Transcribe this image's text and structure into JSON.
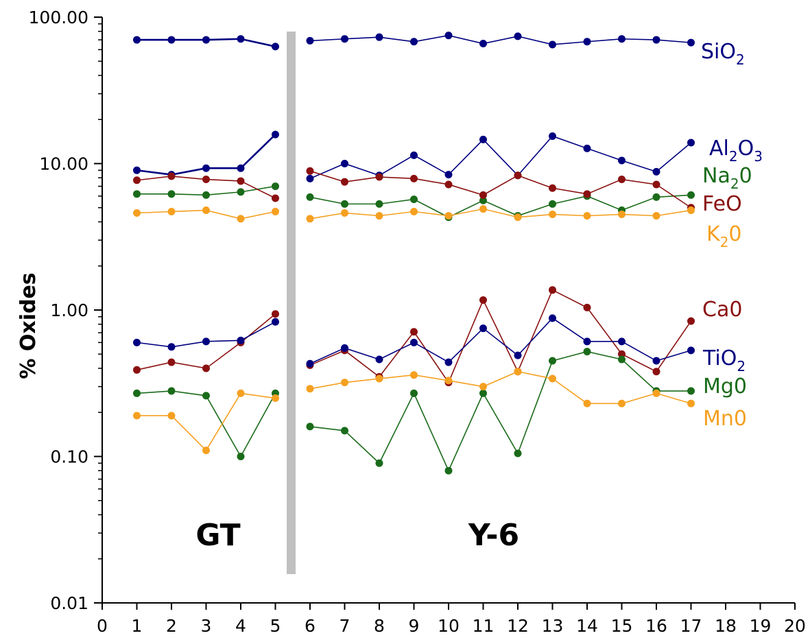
{
  "chart_data": {
    "type": "line",
    "ylabel": "% Oxides",
    "yscale": "log",
    "ylim": [
      0.01,
      100
    ],
    "xlim": [
      0,
      20
    ],
    "x_ticks": [
      "0",
      "1",
      "2",
      "3",
      "4",
      "5",
      "6",
      "7",
      "8",
      "9",
      "10",
      "11",
      "12",
      "13",
      "14",
      "15",
      "16",
      "17",
      "18",
      "19",
      "20"
    ],
    "y_ticks": [
      "0.01",
      "0.10",
      "1.00",
      "10.00",
      "100.00"
    ],
    "grid": false,
    "groups": [
      {
        "label": "GT",
        "x_range": [
          1,
          5
        ]
      },
      {
        "label": "Y-6",
        "x_range": [
          6,
          17
        ]
      }
    ],
    "series": [
      {
        "name": "SiO2",
        "label_main": "SiO",
        "label_sub": "2",
        "label_tail": "",
        "color": "#000080",
        "x": [
          1,
          2,
          3,
          4,
          5,
          6,
          7,
          8,
          9,
          10,
          11,
          12,
          13,
          14,
          15,
          16,
          17
        ],
        "values": [
          70.0,
          70.0,
          70.0,
          71.0,
          63.0,
          69.0,
          71.0,
          73.0,
          68.0,
          75.0,
          66.0,
          74.0,
          65.0,
          68.0,
          71.0,
          70.0,
          67.0
        ]
      },
      {
        "name": "Al2O3",
        "label_main": "Al",
        "label_sub": "2",
        "label_tail": "O3",
        "color": "#000080",
        "x": [
          1,
          2,
          3,
          4,
          5,
          6,
          7,
          8,
          9,
          10,
          11,
          12,
          13,
          14,
          15,
          16,
          17
        ],
        "values": [
          9.0,
          8.4,
          9.3,
          9.3,
          15.8,
          7.9,
          10.0,
          8.3,
          11.4,
          8.4,
          14.6,
          8.3,
          15.4,
          12.7,
          10.5,
          8.8,
          13.9
        ]
      },
      {
        "name": "Na20",
        "label_main": "Na",
        "label_sub": "2",
        "label_tail": "0",
        "color": "#1a6b1a",
        "x": [
          1,
          2,
          3,
          4,
          5,
          6,
          7,
          8,
          9,
          10,
          11,
          12,
          13,
          14,
          15,
          16,
          17
        ],
        "values": [
          6.2,
          6.2,
          6.1,
          6.4,
          7.0,
          5.9,
          5.3,
          5.3,
          5.7,
          4.3,
          5.6,
          4.4,
          5.3,
          6.0,
          4.8,
          5.9,
          6.1
        ]
      },
      {
        "name": "FeO",
        "label_main": "FeO",
        "label_sub": "",
        "label_tail": "",
        "color": "#8b1010",
        "x": [
          1,
          2,
          3,
          4,
          5,
          6,
          7,
          8,
          9,
          10,
          11,
          12,
          13,
          14,
          15,
          16,
          17
        ],
        "values": [
          7.7,
          8.2,
          7.8,
          7.6,
          5.8,
          8.9,
          7.5,
          8.1,
          7.9,
          7.2,
          6.1,
          8.3,
          6.8,
          6.2,
          7.8,
          7.2,
          5.0
        ]
      },
      {
        "name": "K20",
        "label_main": "K",
        "label_sub": "2",
        "label_tail": "0",
        "color": "#f5a020",
        "x": [
          1,
          2,
          3,
          4,
          5,
          6,
          7,
          8,
          9,
          10,
          11,
          12,
          13,
          14,
          15,
          16,
          17
        ],
        "values": [
          4.6,
          4.7,
          4.8,
          4.2,
          4.7,
          4.2,
          4.6,
          4.4,
          4.7,
          4.4,
          4.9,
          4.3,
          4.5,
          4.4,
          4.5,
          4.4,
          4.8
        ]
      },
      {
        "name": "Ca0",
        "label_main": "Ca0",
        "label_sub": "",
        "label_tail": "",
        "color": "#8b1010",
        "x": [
          1,
          2,
          3,
          4,
          5,
          6,
          7,
          8,
          9,
          10,
          11,
          12,
          13,
          14,
          15,
          16,
          17
        ],
        "values": [
          0.39,
          0.44,
          0.4,
          0.6,
          0.94,
          0.42,
          0.53,
          0.35,
          0.71,
          0.32,
          1.17,
          0.38,
          1.37,
          1.04,
          0.5,
          0.38,
          0.84
        ]
      },
      {
        "name": "TiO2",
        "label_main": "TiO",
        "label_sub": "2",
        "label_tail": "",
        "color": "#000080",
        "x": [
          1,
          2,
          3,
          4,
          5,
          6,
          7,
          8,
          9,
          10,
          11,
          12,
          13,
          14,
          15,
          16,
          17
        ],
        "values": [
          0.6,
          0.56,
          0.61,
          0.62,
          0.83,
          0.43,
          0.55,
          0.46,
          0.6,
          0.44,
          0.75,
          0.49,
          0.88,
          0.61,
          0.61,
          0.45,
          0.53
        ]
      },
      {
        "name": "Mg0",
        "label_main": "Mg0",
        "label_sub": "",
        "label_tail": "",
        "color": "#1a6b1a",
        "x": [
          1,
          2,
          3,
          4,
          5,
          6,
          7,
          8,
          9,
          10,
          11,
          12,
          13,
          14,
          15,
          16,
          17
        ],
        "values": [
          0.27,
          0.28,
          0.26,
          0.1,
          0.27,
          0.16,
          0.15,
          0.09,
          0.27,
          0.08,
          0.27,
          0.105,
          0.45,
          0.52,
          0.46,
          0.28,
          0.28
        ]
      },
      {
        "name": "Mn0",
        "label_main": "Mn0",
        "label_sub": "",
        "label_tail": "",
        "color": "#f5a020",
        "x": [
          1,
          2,
          3,
          4,
          5,
          6,
          7,
          8,
          9,
          10,
          11,
          12,
          13,
          14,
          15,
          16,
          17
        ],
        "values": [
          0.19,
          0.19,
          0.11,
          0.27,
          0.25,
          0.29,
          0.32,
          0.34,
          0.36,
          0.33,
          0.3,
          0.38,
          0.34,
          0.23,
          0.23,
          0.27,
          0.23
        ]
      }
    ]
  }
}
